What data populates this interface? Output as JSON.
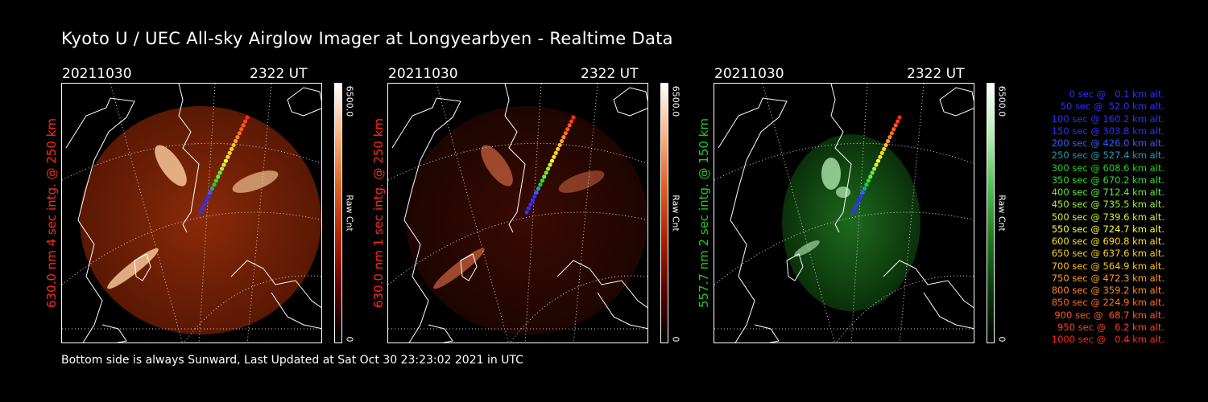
{
  "header": {
    "title": "Kyoto U / UEC All-sky Airglow Imager at Longyearbyen - Realtime Data"
  },
  "footer": {
    "text": "Bottom side is always Sunward, Last Updated at Sat Oct 30 23:23:02 2021 in UTC"
  },
  "panels": [
    {
      "date": "20211030",
      "time": "2322 UT",
      "ylabel": "630.0 nm 4 sec intg. @ 250 km",
      "label_color": "#ff2a1a",
      "colorbar": {
        "max": "6500.0",
        "min": "0",
        "unit": "Raw Cnt"
      },
      "theme": "red",
      "brightness": "high"
    },
    {
      "date": "20211030",
      "time": "2322 UT",
      "ylabel": "630.0 nm 1 sec intg. @ 250 km",
      "label_color": "#ff2a1a",
      "colorbar": {
        "max": "6500.0",
        "min": "0",
        "unit": "Raw Cnt"
      },
      "theme": "red",
      "brightness": "low"
    },
    {
      "date": "20211030",
      "time": "2322 UT",
      "ylabel": "557.7 nm 2 sec intg. @ 150 km",
      "label_color": "#22cc22",
      "colorbar": {
        "max": "6500.0",
        "min": "0",
        "unit": "Raw Cnt"
      },
      "theme": "green",
      "brightness": "medium"
    }
  ],
  "legend": [
    {
      "text": "0 sec @   0.1 km alt.",
      "color": "#3030ff"
    },
    {
      "text": "50 sec @  52.0 km alt.",
      "color": "#3030ff"
    },
    {
      "text": "100 sec @ 160.2 km alt.",
      "color": "#3030ff"
    },
    {
      "text": "150 sec @ 303.8 km alt.",
      "color": "#3030ff"
    },
    {
      "text": "200 sec @ 426.0 km alt.",
      "color": "#3a5cff"
    },
    {
      "text": "250 sec @ 527.4 km alt.",
      "color": "#1ea0b4"
    },
    {
      "text": "300 sec @ 608.6 km alt.",
      "color": "#20d020"
    },
    {
      "text": "350 sec @ 670.2 km alt.",
      "color": "#30e030"
    },
    {
      "text": "400 sec @ 712.4 km alt.",
      "color": "#60ee40"
    },
    {
      "text": "450 sec @ 735.5 km alt.",
      "color": "#a0f040"
    },
    {
      "text": "500 sec @ 739.6 km alt.",
      "color": "#d0f040"
    },
    {
      "text": "550 sec @ 724.7 km alt.",
      "color": "#ffff30"
    },
    {
      "text": "600 sec @ 690.8 km alt.",
      "color": "#ffe020"
    },
    {
      "text": "650 sec @ 637.6 km alt.",
      "color": "#ffd020"
    },
    {
      "text": "700 sec @ 564.9 km alt.",
      "color": "#ffc020"
    },
    {
      "text": "750 sec @ 472.3 km alt.",
      "color": "#ffa020"
    },
    {
      "text": "800 sec @ 359.2 km alt.",
      "color": "#ff8a20"
    },
    {
      "text": "850 sec @ 224.9 km alt.",
      "color": "#ff7020"
    },
    {
      "text": "900 sec @  68.7 km alt.",
      "color": "#ff5a20"
    },
    {
      "text": "950 sec @   6.2 km alt.",
      "color": "#ff4020"
    },
    {
      "text": "1000 sec @   0.4 km alt.",
      "color": "#ff2a1a"
    }
  ]
}
